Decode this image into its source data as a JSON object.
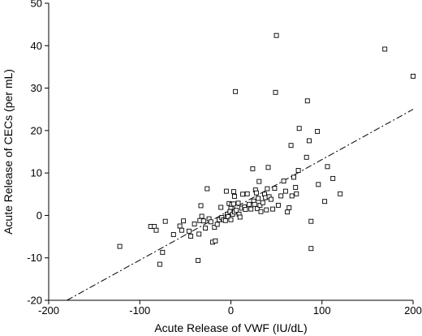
{
  "chart_data": {
    "type": "scatter",
    "xlabel": "Acute Release of VWF (IU/dL)",
    "ylabel": "Acute Release of CECs (per mL)",
    "xlim": [
      -200,
      200
    ],
    "ylim": [
      -20,
      50
    ],
    "xticks": [
      -200,
      -100,
      0,
      100,
      200
    ],
    "yticks": [
      -20,
      -10,
      0,
      10,
      20,
      30,
      40,
      50
    ],
    "grid": false,
    "legend": "none",
    "trendline": {
      "style": "dash-dot",
      "x_start": -180,
      "y_start": -20,
      "x_end": 200,
      "y_end": 25
    },
    "points": [
      {
        "x": -122,
        "y": -7.3
      },
      {
        "x": -88,
        "y": -2.6
      },
      {
        "x": -84,
        "y": -2.6
      },
      {
        "x": -82,
        "y": -3.5
      },
      {
        "x": -78,
        "y": -11.5
      },
      {
        "x": -75,
        "y": -8.7
      },
      {
        "x": -72,
        "y": -1.4
      },
      {
        "x": -63,
        "y": -4.5
      },
      {
        "x": -56,
        "y": -2.5
      },
      {
        "x": -54,
        "y": -3.5
      },
      {
        "x": -52,
        "y": -1.3
      },
      {
        "x": -46,
        "y": -3.7
      },
      {
        "x": -44,
        "y": -4.9
      },
      {
        "x": -40,
        "y": -2.0
      },
      {
        "x": -36,
        "y": -10.6
      },
      {
        "x": -35,
        "y": -4.4
      },
      {
        "x": -34,
        "y": -1.2
      },
      {
        "x": -33,
        "y": 2.3
      },
      {
        "x": -32,
        "y": -0.2
      },
      {
        "x": -30,
        "y": -1.3
      },
      {
        "x": -28,
        "y": -3.0
      },
      {
        "x": -26,
        "y": 6.3
      },
      {
        "x": -24,
        "y": -0.8
      },
      {
        "x": -22,
        "y": -1.5
      },
      {
        "x": -20,
        "y": -6.3
      },
      {
        "x": -18,
        "y": -2.8
      },
      {
        "x": -17,
        "y": -6.0
      },
      {
        "x": -15,
        "y": -2.1
      },
      {
        "x": -13,
        "y": -1.0
      },
      {
        "x": -11,
        "y": 1.9
      },
      {
        "x": -10,
        "y": -0.5
      },
      {
        "x": -8,
        "y": -1.0
      },
      {
        "x": -6,
        "y": -1.2
      },
      {
        "x": -5,
        "y": 5.7
      },
      {
        "x": -4,
        "y": 0.3
      },
      {
        "x": -3,
        "y": -0.3
      },
      {
        "x": -2,
        "y": 2.8
      },
      {
        "x": -1,
        "y": 0.9
      },
      {
        "x": 0,
        "y": 1.9
      },
      {
        "x": 0,
        "y": -1.0
      },
      {
        "x": 1,
        "y": 2.6
      },
      {
        "x": 2,
        "y": 0.3
      },
      {
        "x": 3,
        "y": 2.7
      },
      {
        "x": 3,
        "y": 5.6
      },
      {
        "x": 4,
        "y": 4.5
      },
      {
        "x": 4,
        "y": 0.8
      },
      {
        "x": 5,
        "y": 29.2
      },
      {
        "x": 6,
        "y": 1.2
      },
      {
        "x": 8,
        "y": 2.9
      },
      {
        "x": 9,
        "y": 0.3
      },
      {
        "x": 10,
        "y": -0.4
      },
      {
        "x": 12,
        "y": 1.7
      },
      {
        "x": 13,
        "y": 5.0
      },
      {
        "x": 15,
        "y": 2.0
      },
      {
        "x": 16,
        "y": 1.4
      },
      {
        "x": 18,
        "y": 5.1
      },
      {
        "x": 20,
        "y": 2.6
      },
      {
        "x": 22,
        "y": 1.5
      },
      {
        "x": 24,
        "y": 11.0
      },
      {
        "x": 25,
        "y": 3.4
      },
      {
        "x": 26,
        "y": 2.6
      },
      {
        "x": 27,
        "y": 6.0
      },
      {
        "x": 28,
        "y": 5.3
      },
      {
        "x": 29,
        "y": 1.6
      },
      {
        "x": 30,
        "y": 4.0
      },
      {
        "x": 31,
        "y": 8.0
      },
      {
        "x": 32,
        "y": 2.4
      },
      {
        "x": 33,
        "y": 0.9
      },
      {
        "x": 35,
        "y": 3.0
      },
      {
        "x": 37,
        "y": 5.0
      },
      {
        "x": 38,
        "y": 4.2
      },
      {
        "x": 39,
        "y": 1.3
      },
      {
        "x": 40,
        "y": 6.3
      },
      {
        "x": 41,
        "y": 11.3
      },
      {
        "x": 42,
        "y": 4.4
      },
      {
        "x": 44,
        "y": 3.8
      },
      {
        "x": 46,
        "y": 1.5
      },
      {
        "x": 48,
        "y": 6.4
      },
      {
        "x": 49,
        "y": 29.0
      },
      {
        "x": 50,
        "y": 42.4
      },
      {
        "x": 52,
        "y": 2.4
      },
      {
        "x": 55,
        "y": 4.6
      },
      {
        "x": 58,
        "y": 8.1
      },
      {
        "x": 60,
        "y": 5.7
      },
      {
        "x": 62,
        "y": 0.8
      },
      {
        "x": 64,
        "y": 1.8
      },
      {
        "x": 66,
        "y": 16.5
      },
      {
        "x": 67,
        "y": 4.6
      },
      {
        "x": 69,
        "y": 9.0
      },
      {
        "x": 71,
        "y": 6.6
      },
      {
        "x": 72,
        "y": 5.1
      },
      {
        "x": 74,
        "y": 10.6
      },
      {
        "x": 75,
        "y": 20.5
      },
      {
        "x": 83,
        "y": 13.7
      },
      {
        "x": 84,
        "y": 27.0
      },
      {
        "x": 86,
        "y": 17.6
      },
      {
        "x": 88,
        "y": -1.4
      },
      {
        "x": 88,
        "y": -7.8
      },
      {
        "x": 95,
        "y": 19.8
      },
      {
        "x": 96,
        "y": 7.3
      },
      {
        "x": 103,
        "y": 3.3
      },
      {
        "x": 106,
        "y": 11.5
      },
      {
        "x": 112,
        "y": 8.7
      },
      {
        "x": 120,
        "y": 5.1
      },
      {
        "x": 169,
        "y": 39.2
      },
      {
        "x": 200,
        "y": 32.8
      }
    ]
  }
}
